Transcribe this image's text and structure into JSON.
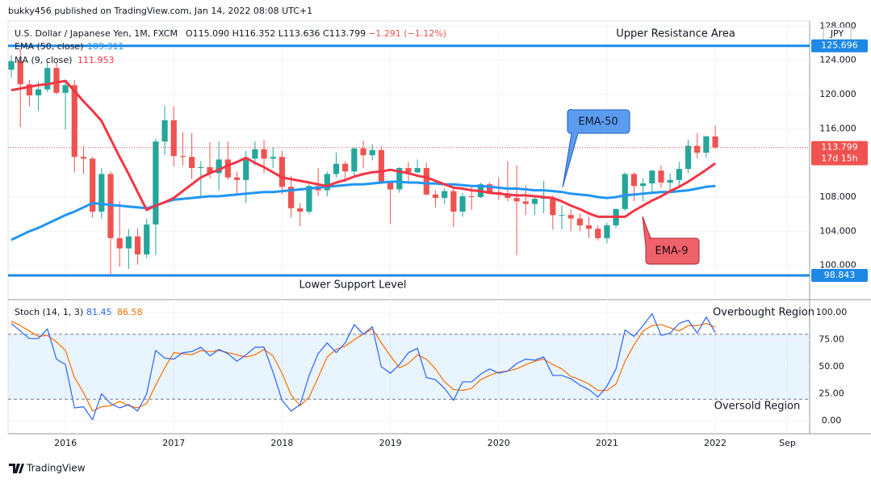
{
  "header": {
    "publisher": "bukky456 published on TradingView.com, Jan 14, 2022 08:08 UTC+1"
  },
  "footer": {
    "brand": "TradingView"
  },
  "chart_data": [
    {
      "type": "candlestick",
      "legend_symbol": "U.S. Dollar / Japanese Yen, 1M, FXCM",
      "legend_ohlc": "O115.090 H116.352 L113.636 C113.799",
      "legend_change": "−1.291 (−1.12%)",
      "currency": "JPY",
      "countdown": "17d 15h",
      "up_color": "#26a69a",
      "down_color": "#ef5350",
      "xlim": [
        -0.36,
        88.46
      ],
      "xticks": [
        {
          "value": 6,
          "label": "2016"
        },
        {
          "value": 18,
          "label": "2017"
        },
        {
          "value": 30,
          "label": "2018"
        },
        {
          "value": 42,
          "label": "2019"
        },
        {
          "value": 54,
          "label": "2020"
        },
        {
          "value": 66,
          "label": "2021"
        },
        {
          "value": 78,
          "label": "2022"
        },
        {
          "value": 86,
          "label": "Sep"
        }
      ],
      "ylim": [
        96.1,
        128.6
      ],
      "yticks": [
        {
          "value": 100,
          "label": "100.000"
        },
        {
          "value": 104,
          "label": "104.000"
        },
        {
          "value": 108,
          "label": "108.000"
        },
        {
          "value": 116,
          "label": "116.000"
        },
        {
          "value": 120,
          "label": "120.000"
        },
        {
          "value": 124,
          "label": "124.000"
        },
        {
          "value": 128,
          "label": "128.000"
        }
      ],
      "grid": true,
      "open": [
        122.9,
        123.9,
        121.2,
        119.9,
        120.6,
        123.1,
        120.2,
        121.1,
        112.7,
        112.5,
        106.3,
        110.7,
        103.2,
        102.0,
        103.4,
        101.3,
        104.8,
        114.5,
        117.0,
        112.8,
        112.7,
        111.4,
        111.5,
        110.8,
        112.4,
        110.3,
        110.0,
        112.5,
        113.6,
        112.5,
        112.7,
        109.2,
        106.7,
        106.3,
        109.3,
        108.8,
        110.7,
        111.9,
        111.0,
        113.7,
        112.9,
        113.5,
        109.7,
        108.9,
        111.4,
        110.9,
        111.4,
        108.3,
        107.9,
        108.7,
        106.3,
        108.1,
        108.0,
        109.5,
        108.6,
        108.4,
        107.9,
        107.5,
        107.2,
        107.8,
        107.9,
        105.9,
        105.9,
        105.5,
        104.7,
        104.3,
        103.2,
        104.7,
        106.6,
        110.7,
        109.3,
        109.6,
        111.1,
        109.7,
        110.0,
        111.3,
        114.0,
        113.2,
        115.09
      ],
      "high": [
        124.6,
        125.3,
        121.7,
        121.5,
        123.8,
        123.7,
        121.7,
        121.7,
        114.0,
        112.7,
        111.4,
        111.0,
        107.5,
        104.3,
        104.3,
        105.5,
        114.8,
        118.7,
        118.6,
        115.6,
        115.5,
        112.2,
        114.4,
        114.5,
        114.5,
        111.0,
        113.4,
        114.5,
        114.7,
        113.8,
        113.4,
        110.5,
        107.3,
        109.5,
        111.4,
        111.0,
        113.2,
        112.2,
        113.8,
        114.6,
        114.2,
        114.0,
        109.9,
        111.5,
        112.1,
        112.4,
        112.0,
        108.8,
        109.0,
        109.3,
        108.5,
        109.3,
        109.7,
        109.7,
        110.3,
        112.2,
        111.7,
        109.4,
        108.1,
        109.9,
        108.2,
        107.0,
        106.6,
        106.1,
        105.7,
        104.7,
        105.0,
        106.7,
        110.9,
        110.9,
        110.2,
        111.2,
        111.7,
        110.8,
        112.1,
        114.7,
        115.5,
        115.2,
        116.352
      ],
      "low": [
        122.0,
        116.2,
        118.6,
        118.1,
        120.3,
        120.0,
        115.9,
        110.9,
        110.7,
        105.6,
        105.5,
        99.0,
        99.9,
        99.6,
        100.1,
        100.9,
        101.2,
        112.9,
        111.6,
        111.7,
        110.1,
        108.1,
        110.2,
        108.8,
        110.0,
        108.3,
        107.3,
        111.7,
        110.8,
        111.4,
        108.3,
        105.6,
        104.6,
        106.0,
        108.1,
        108.1,
        110.3,
        109.8,
        110.4,
        111.4,
        112.3,
        109.5,
        104.9,
        108.5,
        109.7,
        110.8,
        108.2,
        106.8,
        107.2,
        104.5,
        105.7,
        106.5,
        107.9,
        108.4,
        107.7,
        107.5,
        101.2,
        105.9,
        105.9,
        106.1,
        104.2,
        104.2,
        104.0,
        104.0,
        103.2,
        102.9,
        102.6,
        104.4,
        106.4,
        107.5,
        107.5,
        108.6,
        109.1,
        108.7,
        109.1,
        110.8,
        112.5,
        112.6,
        113.636
      ],
      "close": [
        123.9,
        121.2,
        119.9,
        120.6,
        123.1,
        120.2,
        121.1,
        112.7,
        112.5,
        106.3,
        110.7,
        103.2,
        102.0,
        103.4,
        101.3,
        104.8,
        114.5,
        117.0,
        112.8,
        112.7,
        111.4,
        111.5,
        110.8,
        112.4,
        110.3,
        110.0,
        112.5,
        113.6,
        112.5,
        112.7,
        109.2,
        106.7,
        106.3,
        109.3,
        108.8,
        110.7,
        111.9,
        111.0,
        113.7,
        112.9,
        113.5,
        109.7,
        108.9,
        111.4,
        110.9,
        111.4,
        108.3,
        107.9,
        108.7,
        106.3,
        108.1,
        108.0,
        109.5,
        108.6,
        108.4,
        107.9,
        107.5,
        107.2,
        107.8,
        107.9,
        105.9,
        105.9,
        105.5,
        104.7,
        104.3,
        103.2,
        104.7,
        106.6,
        110.7,
        109.3,
        109.6,
        111.1,
        109.7,
        110.0,
        111.3,
        114.0,
        113.2,
        115.1,
        113.799
      ],
      "series": [
        {
          "name": "EMA (50, close)",
          "color": "#2196f3",
          "values": [
            103.0,
            103.5,
            104.0,
            104.4,
            104.9,
            105.4,
            105.9,
            106.3,
            106.8,
            107.3,
            107.2,
            107.1,
            107.0,
            106.9,
            106.8,
            106.7,
            107.0,
            107.4,
            107.7,
            107.8,
            107.9,
            108.0,
            108.1,
            108.1,
            108.2,
            108.3,
            108.4,
            108.5,
            108.6,
            108.6,
            108.7,
            108.8,
            108.9,
            109.0,
            109.1,
            109.2,
            109.3,
            109.4,
            109.5,
            109.5,
            109.6,
            109.7,
            109.8,
            109.8,
            109.7,
            109.7,
            109.6,
            109.6,
            109.5,
            109.5,
            109.4,
            109.3,
            109.3,
            109.2,
            109.1,
            109.0,
            109.0,
            108.9,
            108.8,
            108.8,
            108.7,
            108.6,
            108.4,
            108.3,
            108.2,
            108.0,
            107.9,
            108.0,
            108.2,
            108.3,
            108.4,
            108.5,
            108.6,
            108.6,
            108.7,
            108.8,
            109.0,
            109.2,
            109.311
          ]
        },
        {
          "name": "MA (9, close)",
          "color": "#f23645",
          "values": [
            120.5,
            120.7,
            120.9,
            121.1,
            121.2,
            121.4,
            121.6,
            120.4,
            119.2,
            118.1,
            116.9,
            114.8,
            112.7,
            110.7,
            108.6,
            106.5,
            107.0,
            107.4,
            107.9,
            108.7,
            109.5,
            110.3,
            110.8,
            111.2,
            111.7,
            112.1,
            112.6,
            112.0,
            111.5,
            110.9,
            110.3,
            110.1,
            109.9,
            109.7,
            109.5,
            109.3,
            109.7,
            110.0,
            110.4,
            110.7,
            110.9,
            111.0,
            111.2,
            111.0,
            110.8,
            110.5,
            110.3,
            109.9,
            109.5,
            109.1,
            109.0,
            108.8,
            108.7,
            108.5,
            108.4,
            108.3,
            108.2,
            108.2,
            108.1,
            108.0,
            107.9,
            107.5,
            107.0,
            106.6,
            106.1,
            105.7,
            105.7,
            105.7,
            105.7,
            106.4,
            107.0,
            107.6,
            108.1,
            108.7,
            109.2,
            109.8,
            110.5,
            111.2,
            111.953
          ]
        }
      ],
      "levels": [
        {
          "name": "Upper Resistance Area",
          "value": 125.696,
          "color": "#1e88e5"
        },
        {
          "name": "Lower Support Level",
          "value": 98.843,
          "color": "#1e88e5"
        }
      ],
      "annotations": [
        "EMA-50",
        "EMA-9"
      ]
    },
    {
      "type": "line",
      "legend": "Stoch (14, 1, 3)",
      "ylim": [
        -11.9,
        111.2
      ],
      "yticks": [
        {
          "value": 100,
          "label": "100.00"
        },
        {
          "value": 75,
          "label": "75.00"
        },
        {
          "value": 50,
          "label": "50.00"
        },
        {
          "value": 25,
          "label": "25.00"
        },
        {
          "value": 0,
          "label": "0.00"
        }
      ],
      "bands": {
        "upper": 80,
        "lower": 20
      },
      "annotations": [
        "Overbought Region",
        "Oversold Region"
      ],
      "series": [
        {
          "name": "%K",
          "color": "#2962ff",
          "values": [
            90,
            83,
            76,
            76,
            85,
            57,
            52,
            12,
            13,
            1,
            25,
            16,
            12,
            15,
            9,
            25,
            65,
            58,
            57,
            63,
            64,
            68,
            60,
            66,
            62,
            55,
            61,
            68,
            68,
            45,
            19,
            9,
            15,
            42,
            62,
            72,
            63,
            72,
            89,
            80,
            87,
            50,
            44,
            52,
            63,
            67,
            40,
            38,
            30,
            19,
            36,
            36,
            43,
            48,
            44,
            46,
            53,
            57,
            56,
            59,
            42,
            42,
            39,
            33,
            29,
            22,
            32,
            48,
            84,
            78,
            88,
            99,
            79,
            81,
            90,
            93,
            81,
            96,
            81.45
          ]
        },
        {
          "name": "%D",
          "color": "#ff6d00",
          "values": [
            92,
            88,
            83,
            78,
            79,
            73,
            65,
            40,
            26,
            9,
            13,
            14,
            18,
            14,
            12,
            16,
            33,
            49,
            63,
            62,
            61,
            65,
            64,
            65,
            63,
            61,
            59,
            61,
            66,
            60,
            44,
            24,
            14,
            22,
            40,
            59,
            66,
            69,
            75,
            80,
            85,
            72,
            60,
            49,
            53,
            61,
            57,
            48,
            36,
            29,
            28,
            30,
            38,
            42,
            45,
            46,
            48,
            52,
            55,
            57,
            52,
            48,
            41,
            38,
            34,
            28,
            28,
            34,
            55,
            70,
            83,
            88,
            89,
            86,
            83,
            88,
            88,
            90,
            86.58
          ]
        }
      ]
    }
  ]
}
